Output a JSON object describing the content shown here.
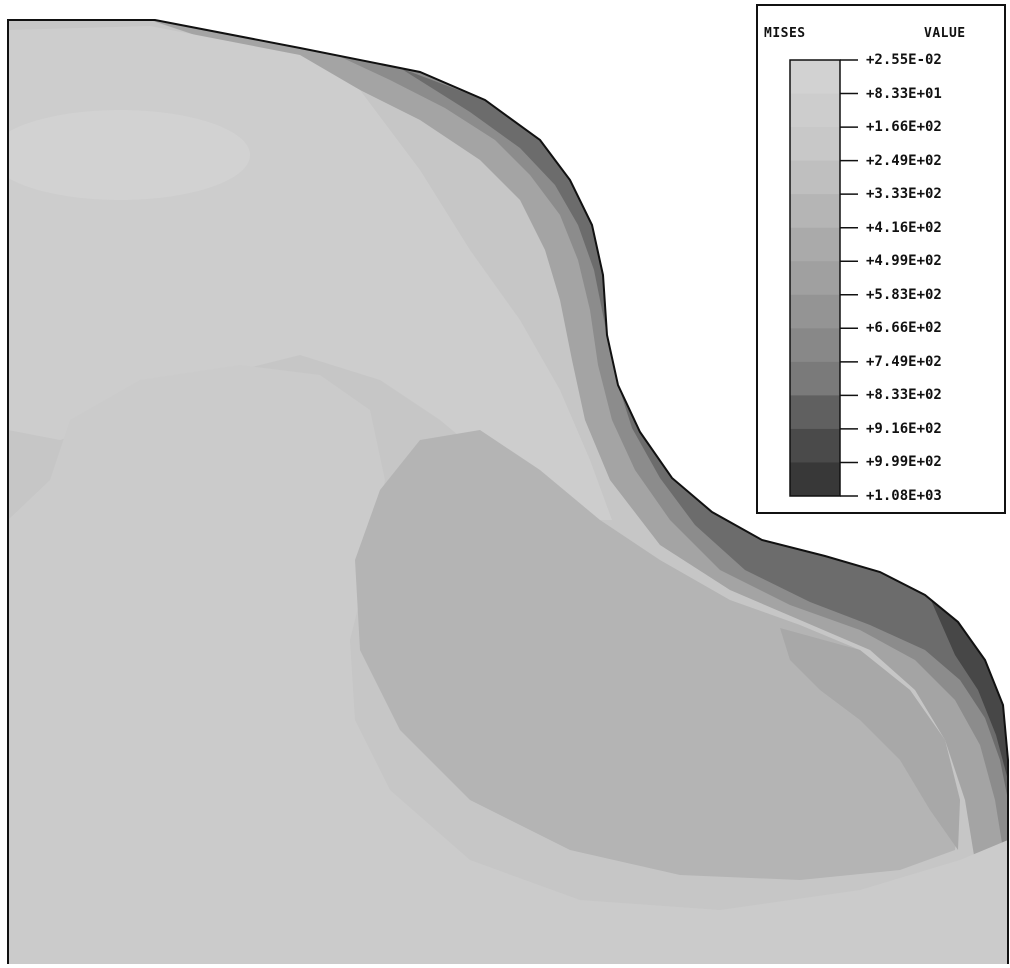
{
  "legend": {
    "variable_label": "MISES",
    "value_label": "VALUE",
    "levels": [
      {
        "value": "+2.55E-02",
        "color": "#d2d2d2"
      },
      {
        "value": "+8.33E+01",
        "color": "#cdcdcd"
      },
      {
        "value": "+1.66E+02",
        "color": "#c8c8c8"
      },
      {
        "value": "+2.49E+02",
        "color": "#bfbfbf"
      },
      {
        "value": "+3.33E+02",
        "color": "#b5b5b5"
      },
      {
        "value": "+4.16E+02",
        "color": "#aaaaaa"
      },
      {
        "value": "+4.99E+02",
        "color": "#a0a0a0"
      },
      {
        "value": "+5.83E+02",
        "color": "#949494"
      },
      {
        "value": "+6.66E+02",
        "color": "#888888"
      },
      {
        "value": "+7.49E+02",
        "color": "#7a7a7a"
      },
      {
        "value": "+8.33E+02",
        "color": "#606060"
      },
      {
        "value": "+9.16E+02",
        "color": "#4a4a4a"
      },
      {
        "value": "+9.99E+02",
        "color": "#383838"
      },
      {
        "value": "+1.08E+03",
        "color": "#2a2a2a"
      }
    ]
  }
}
